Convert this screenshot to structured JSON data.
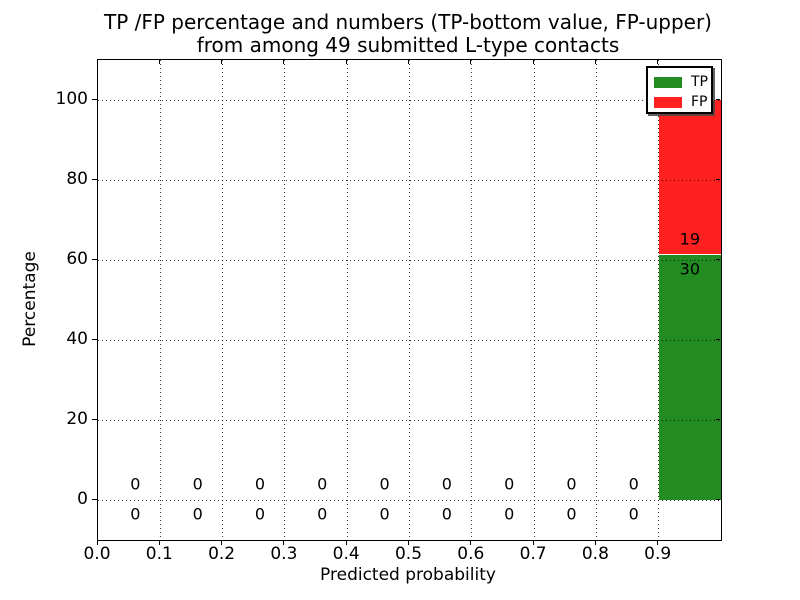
{
  "chart_data": {
    "type": "bar",
    "stacked": true,
    "title_line1": "TP /FP percentage and numbers (TP-bottom value, FP-upper)",
    "title_line2": "from among 49 submitted L-type contacts",
    "xlabel": "Predicted probability",
    "ylabel": "Percentage",
    "total_contacts": 49,
    "x_tick_labels": [
      "0.0",
      "0.1",
      "0.2",
      "0.3",
      "0.4",
      "0.5",
      "0.6",
      "0.7",
      "0.8",
      "0.9"
    ],
    "x_tick_values": [
      0,
      0.1,
      0.2,
      0.3,
      0.4,
      0.5,
      0.6,
      0.7,
      0.8,
      0.9
    ],
    "y_tick_labels": [
      "0",
      "20",
      "40",
      "60",
      "80",
      "100"
    ],
    "y_tick_values": [
      0,
      20,
      40,
      60,
      80,
      100
    ],
    "xlim": [
      0,
      1.0
    ],
    "ylim": [
      -10,
      110
    ],
    "grid": "dotted black, drawn above bars",
    "bins": {
      "centers": [
        0.05,
        0.15,
        0.25,
        0.35,
        0.45,
        0.55,
        0.65,
        0.75,
        0.85,
        0.95
      ],
      "width": 0.1
    },
    "series": [
      {
        "name": "TP",
        "color": "#228b22",
        "counts": [
          0,
          0,
          0,
          0,
          0,
          0,
          0,
          0,
          0,
          30
        ],
        "percentages": [
          0,
          0,
          0,
          0,
          0,
          0,
          0,
          0,
          0,
          61.2
        ]
      },
      {
        "name": "FP",
        "color": "#ff2020",
        "counts": [
          0,
          0,
          0,
          0,
          0,
          0,
          0,
          0,
          0,
          19
        ],
        "percentages": [
          0,
          0,
          0,
          0,
          0,
          0,
          0,
          0,
          0,
          38.8
        ]
      }
    ],
    "bar_annotations": {
      "fp_labels": [
        "0",
        "0",
        "0",
        "0",
        "0",
        "0",
        "0",
        "0",
        "0",
        "19"
      ],
      "tp_labels": [
        "0",
        "0",
        "0",
        "0",
        "0",
        "0",
        "0",
        "0",
        "0",
        "30"
      ]
    },
    "legend": {
      "position": "upper right",
      "entries": [
        {
          "label": "TP",
          "color": "#228b22"
        },
        {
          "label": "FP",
          "color": "#ff2020"
        }
      ]
    }
  }
}
